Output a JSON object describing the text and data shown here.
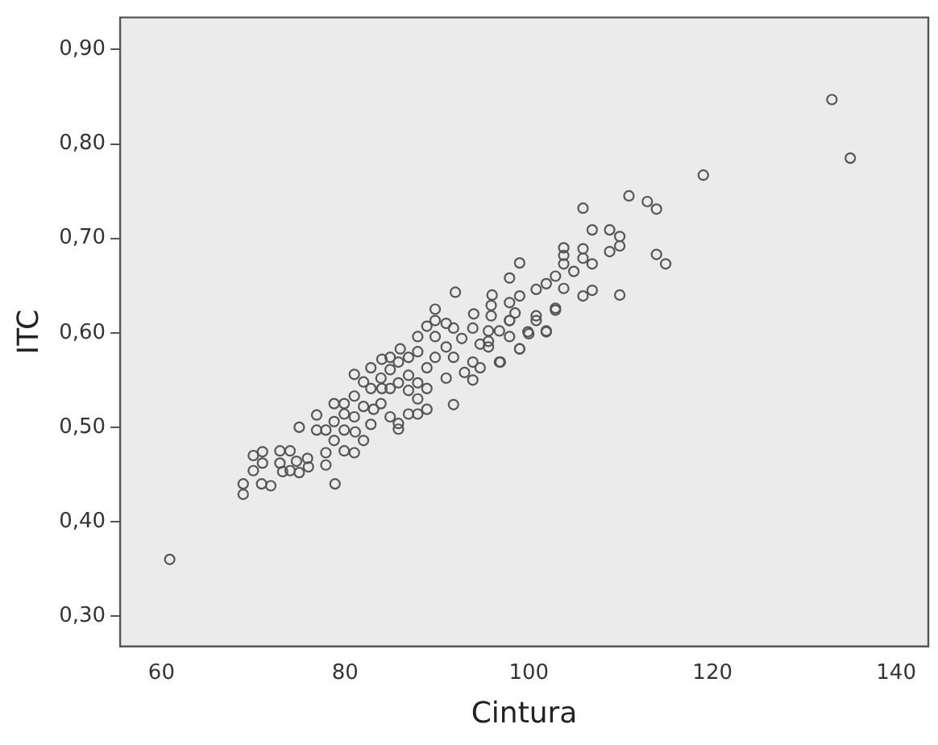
{
  "chart_data": {
    "type": "scatter",
    "xlabel": "Cintura",
    "ylabel": "ITC",
    "marker": "circle",
    "grid": false,
    "legend": false,
    "xlim": [
      55.5,
      143.5
    ],
    "xticks": [
      60,
      80,
      100,
      120,
      140
    ],
    "ylim": [
      0.268,
      0.934
    ],
    "yticks": [
      {
        "value": 0.3,
        "label": "0,30"
      },
      {
        "value": 0.4,
        "label": "0,40"
      },
      {
        "value": 0.5,
        "label": "0,50"
      },
      {
        "value": 0.6,
        "label": "0,60"
      },
      {
        "value": 0.7,
        "label": "0,70"
      },
      {
        "value": 0.8,
        "label": "0,80"
      },
      {
        "value": 0.9,
        "label": "0,90"
      }
    ],
    "series": [
      {
        "color": "#555555",
        "x": [
          60.9,
          133.0,
          135.0,
          119.0,
          110.9,
          112.9,
          113.9,
          105.9,
          106.9,
          108.8,
          109.9,
          109.9,
          108.8,
          113.9,
          114.9,
          103.8,
          103.8,
          103.8,
          105.9,
          105.9,
          106.9,
          102.9,
          104.9,
          103.8,
          106.9,
          105.9,
          109.9,
          99.0,
          97.9,
          101.9,
          100.8,
          99.0,
          97.9,
          102.9,
          101.9,
          99.9,
          99.0,
          96.9,
          95.9,
          100.8,
          97.9,
          96.8,
          95.6,
          98.5,
          68.9,
          68.9,
          70.9,
          71.9,
          70.0,
          70.0,
          71.0,
          71.0,
          72.9,
          72.9,
          74.0,
          75.0,
          74.0,
          75.9,
          76.0,
          78.9,
          77.9,
          75.0,
          76.9,
          76.9,
          77.9,
          78.8,
          81.0,
          79.9,
          81.0,
          79.9,
          82.0,
          81.0,
          82.8,
          83.1,
          81.0,
          82.0,
          84.0,
          83.9,
          84.9,
          85.8,
          84.9,
          85.8,
          86.9,
          84.9,
          84.9,
          85.8,
          86.9,
          87.9,
          87.9,
          88.9,
          87.9,
          85.8,
          88.9,
          87.9,
          87.9,
          88.9,
          89.8,
          91.0,
          91.8,
          89.8,
          91.0,
          88.9,
          89.8,
          91.8,
          92.7,
          91.8,
          93.9,
          93.9,
          94.7,
          93.0,
          93.9,
          94.7,
          95.6,
          96.8,
          99.0,
          95.9,
          97.9,
          100.0,
          100.8,
          101.9,
          102.9,
          89.8,
          91.0,
          97.9,
          95.6,
          78.8,
          78.8,
          79.9,
          77.9,
          82.8,
          83.9,
          82.8,
          84.0,
          86.0,
          86.9,
          81.1,
          82.0,
          86.9,
          79.9,
          73.2,
          74.7,
          92.0,
          94.0,
          96.0
        ],
        "values": [
          0.36,
          0.847,
          0.785,
          0.767,
          0.745,
          0.739,
          0.731,
          0.732,
          0.709,
          0.709,
          0.702,
          0.692,
          0.686,
          0.683,
          0.673,
          0.69,
          0.682,
          0.673,
          0.689,
          0.679,
          0.673,
          0.66,
          0.665,
          0.647,
          0.645,
          0.639,
          0.64,
          0.674,
          0.658,
          0.652,
          0.646,
          0.639,
          0.632,
          0.626,
          0.601,
          0.601,
          0.583,
          0.569,
          0.629,
          0.618,
          0.613,
          0.602,
          0.591,
          0.621,
          0.429,
          0.44,
          0.44,
          0.438,
          0.47,
          0.454,
          0.474,
          0.462,
          0.475,
          0.462,
          0.454,
          0.452,
          0.475,
          0.467,
          0.458,
          0.44,
          0.46,
          0.5,
          0.513,
          0.497,
          0.473,
          0.486,
          0.473,
          0.497,
          0.511,
          0.525,
          0.522,
          0.533,
          0.503,
          0.519,
          0.556,
          0.548,
          0.541,
          0.525,
          0.511,
          0.498,
          0.541,
          0.547,
          0.539,
          0.574,
          0.561,
          0.569,
          0.555,
          0.547,
          0.53,
          0.519,
          0.514,
          0.504,
          0.541,
          0.596,
          0.58,
          0.563,
          0.574,
          0.552,
          0.524,
          0.596,
          0.585,
          0.607,
          0.613,
          0.605,
          0.594,
          0.574,
          0.569,
          0.55,
          0.563,
          0.558,
          0.605,
          0.588,
          0.602,
          0.569,
          0.583,
          0.618,
          0.613,
          0.599,
          0.613,
          0.602,
          0.624,
          0.625,
          0.61,
          0.596,
          0.585,
          0.525,
          0.506,
          0.475,
          0.497,
          0.541,
          0.552,
          0.563,
          0.572,
          0.583,
          0.574,
          0.495,
          0.486,
          0.514,
          0.514,
          0.453,
          0.464,
          0.643,
          0.62,
          0.64
        ]
      }
    ]
  }
}
